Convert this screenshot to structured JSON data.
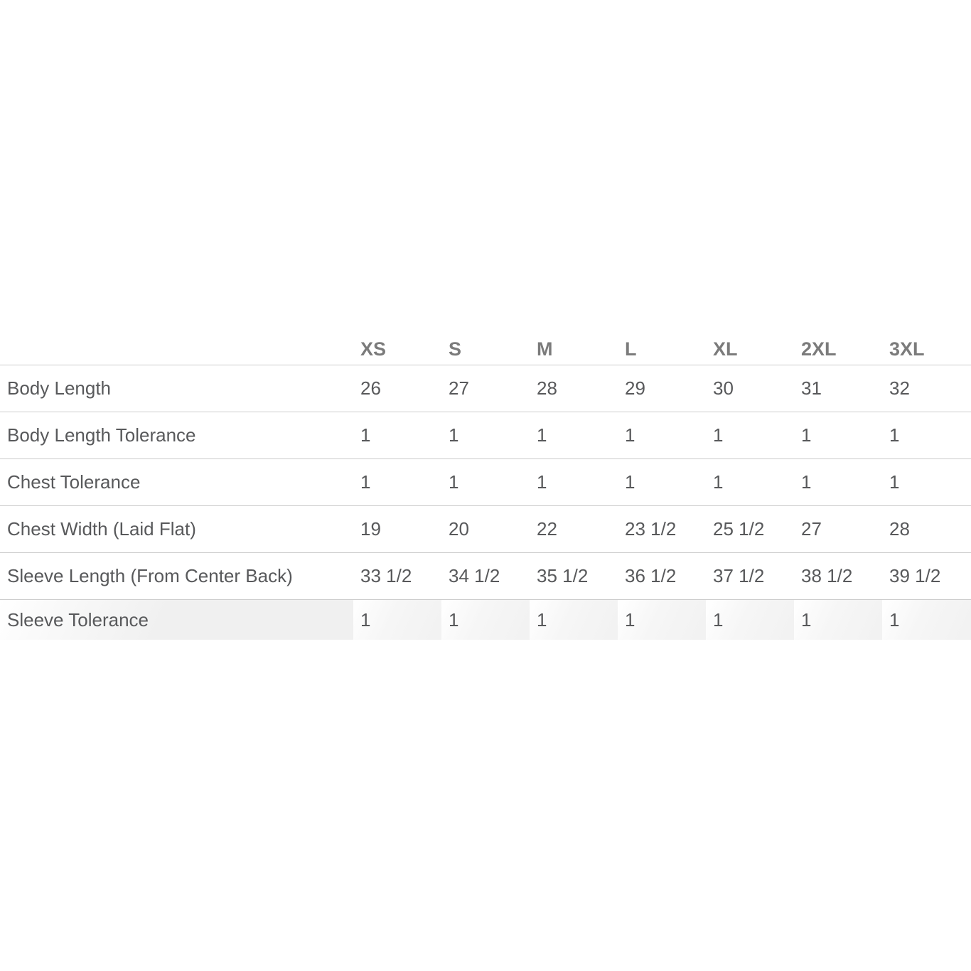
{
  "size_chart": {
    "columns": [
      "XS",
      "S",
      "M",
      "L",
      "XL",
      "2XL",
      "3XL"
    ],
    "rows": [
      {
        "label": "Body Length",
        "values": [
          "26",
          "27",
          "28",
          "29",
          "30",
          "31",
          "32"
        ]
      },
      {
        "label": "Body Length Tolerance",
        "values": [
          "1",
          "1",
          "1",
          "1",
          "1",
          "1",
          "1"
        ]
      },
      {
        "label": "Chest Tolerance",
        "values": [
          "1",
          "1",
          "1",
          "1",
          "1",
          "1",
          "1"
        ]
      },
      {
        "label": "Chest Width (Laid Flat)",
        "values": [
          "19",
          "20",
          "22",
          "23 1/2",
          "25 1/2",
          "27",
          "28"
        ]
      },
      {
        "label": "Sleeve Length (From Center Back)",
        "values": [
          "33 1/2",
          "34 1/2",
          "35 1/2",
          "36 1/2",
          "37 1/2",
          "38 1/2",
          "39 1/2"
        ]
      },
      {
        "label": "Sleeve Tolerance",
        "values": [
          "1",
          "1",
          "1",
          "1",
          "1",
          "1",
          "1"
        ]
      }
    ],
    "colors": {
      "header_text": "#7b7b7b",
      "body_text": "#58595b",
      "row_border": "#cccccc",
      "highlight_row_bg": "#f0f0f0"
    }
  }
}
